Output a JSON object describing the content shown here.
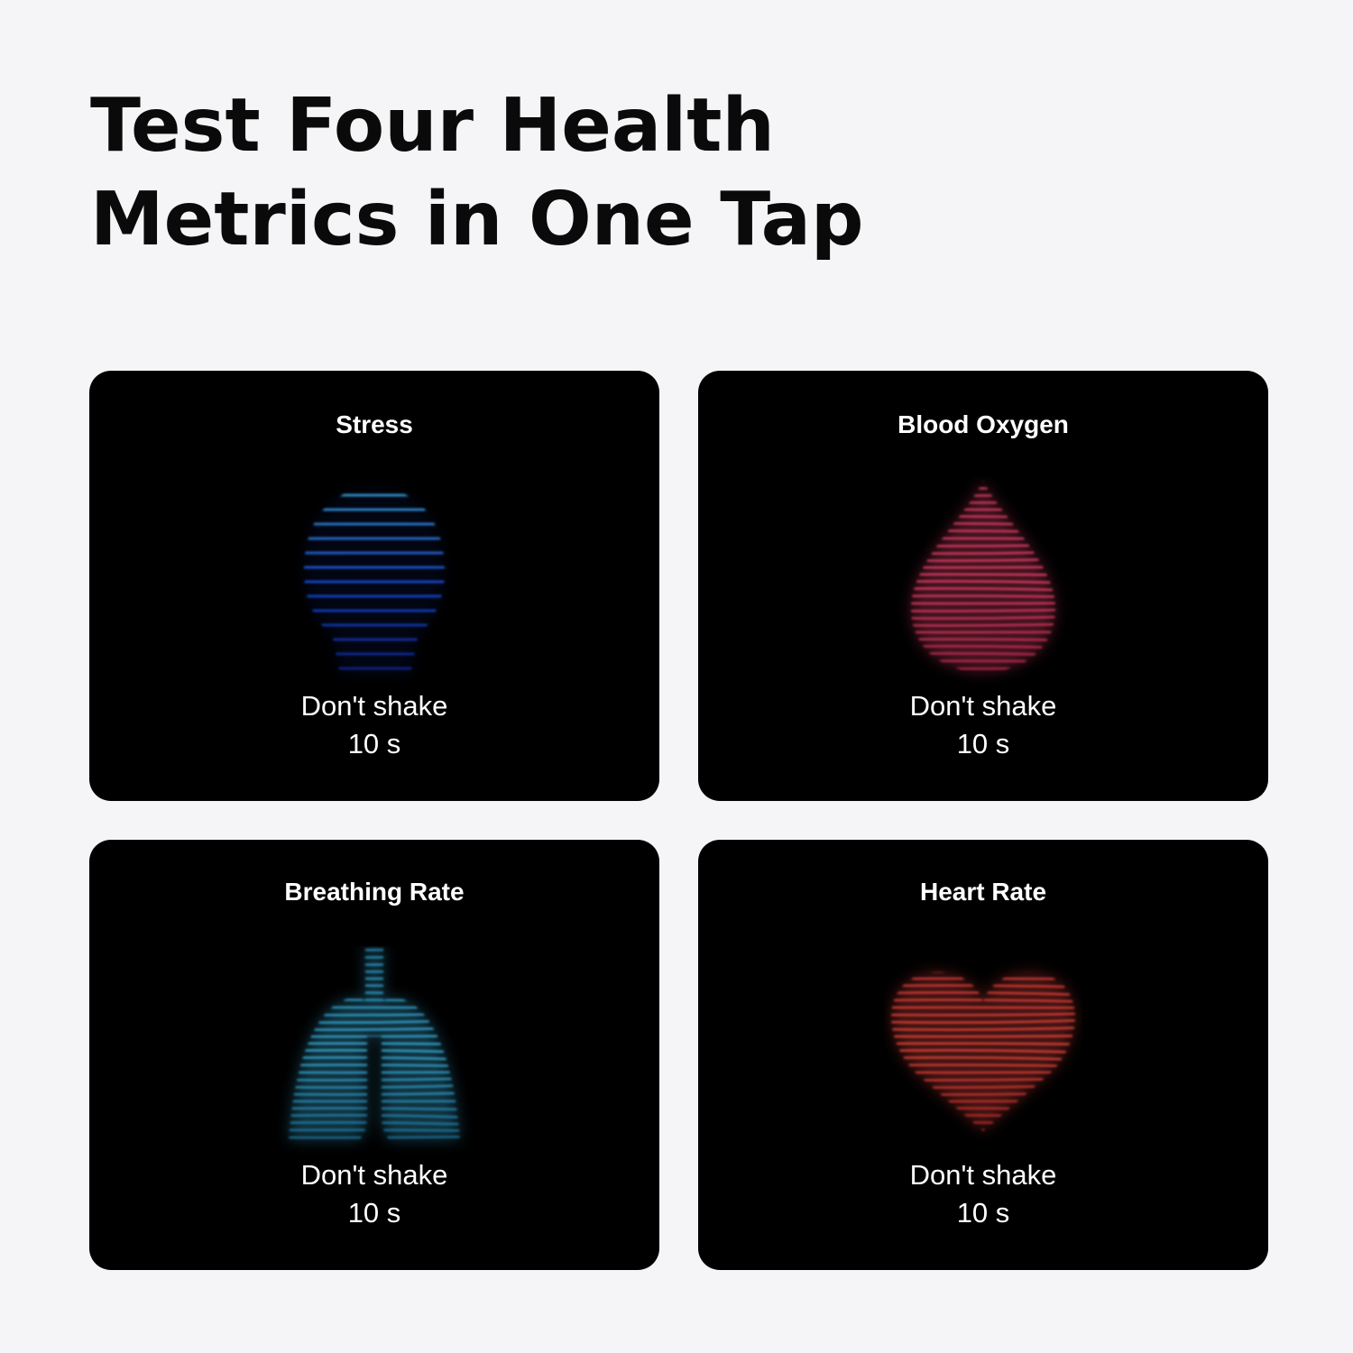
{
  "headline": {
    "line1": "Test Four Health",
    "line2": "Metrics in One Tap"
  },
  "cards": [
    {
      "title": "Stress",
      "icon": "head-icon",
      "instruction": "Don't shake",
      "duration": "10 s",
      "colors": [
        "#3fb6e0",
        "#1b4fe8",
        "#0d1f8a"
      ]
    },
    {
      "title": "Blood Oxygen",
      "icon": "blood-drop-icon",
      "instruction": "Don't shake",
      "duration": "10 s",
      "colors": [
        "#e0406a",
        "#f0456e",
        "#c0284f"
      ]
    },
    {
      "title": "Breathing Rate",
      "icon": "lungs-icon",
      "instruction": "Don't shake",
      "duration": "10 s",
      "colors": [
        "#2a9ac8",
        "#3cb8e6",
        "#1a6f9a"
      ]
    },
    {
      "title": "Heart Rate",
      "icon": "heart-icon",
      "instruction": "Don't shake",
      "duration": "10 s",
      "colors": [
        "#e03a3a",
        "#f04a40",
        "#b02025"
      ]
    }
  ]
}
